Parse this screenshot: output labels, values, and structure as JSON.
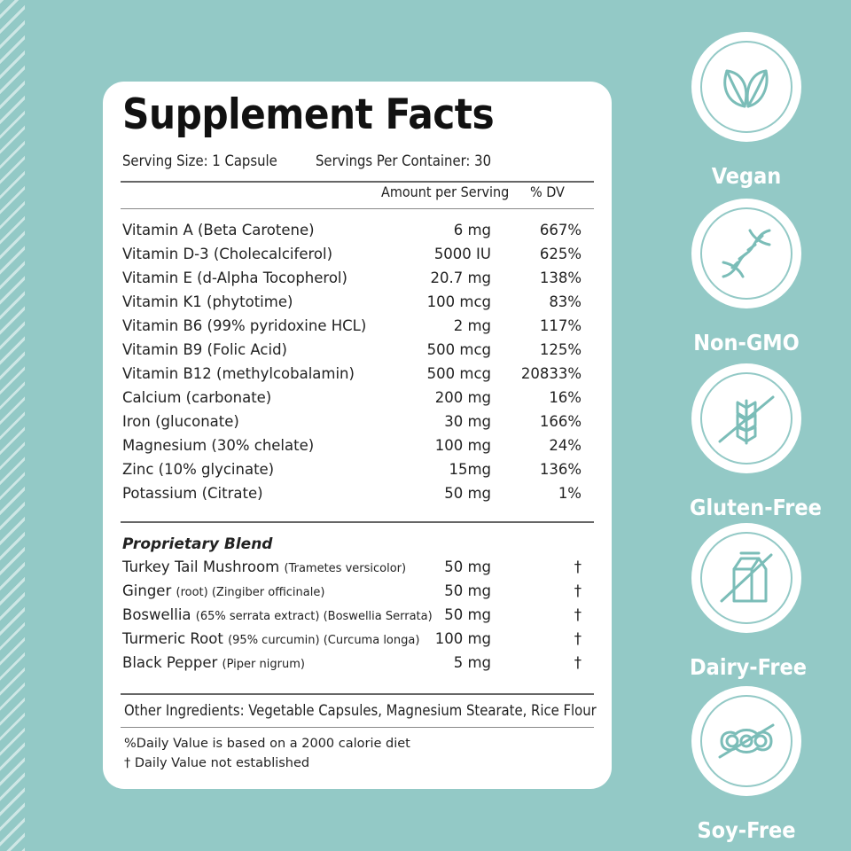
{
  "panel": {
    "title": "Supplement Facts",
    "serving_size": "Serving Size: 1 Capsule",
    "servings_per_container": "Servings Per Container: 30",
    "col_amount": "Amount per Serving",
    "col_dv": "% DV",
    "nutrients": [
      {
        "name": "Vitamin A (Beta Carotene)",
        "amount": "6 mg",
        "dv": "667%"
      },
      {
        "name": "Vitamin D-3 (Cholecalciferol)",
        "amount": "5000 IU",
        "dv": "625%"
      },
      {
        "name": "Vitamin E (d-Alpha Tocopherol)",
        "amount": "20.7 mg",
        "dv": "138%"
      },
      {
        "name": "Vitamin K1 (phytotime)",
        "amount": "100 mcg",
        "dv": "83%"
      },
      {
        "name": "Vitamin B6 (99% pyridoxine HCL)",
        "amount": "2 mg",
        "dv": "117%"
      },
      {
        "name": "Vitamin B9 (Folic Acid)",
        "amount": "500 mcg",
        "dv": "125%"
      },
      {
        "name": "Vitamin B12 (methylcobalamin)",
        "amount": "500 mcg",
        "dv": "20833%"
      },
      {
        "name": "Calcium (carbonate)",
        "amount": "200 mg",
        "dv": "16%"
      },
      {
        "name": "Iron (gluconate)",
        "amount": "30 mg",
        "dv": "166%"
      },
      {
        "name": "Magnesium (30% chelate)",
        "amount": "100 mg",
        "dv": "24%"
      },
      {
        "name": "Zinc (10% glycinate)",
        "amount": "15mg",
        "dv": "136%"
      },
      {
        "name": "Potassium (Citrate)",
        "amount": "50 mg",
        "dv": "1%"
      }
    ],
    "blend_title": "Proprietary Blend",
    "blend": [
      {
        "name": "Turkey Tail Mushroom",
        "note": "(Trametes versicolor)",
        "amount": "50 mg",
        "dv": "†"
      },
      {
        "name": "Ginger",
        "note": "(root)  (Zingiber officinale)",
        "amount": "50 mg",
        "dv": "†"
      },
      {
        "name": "Boswellia",
        "note": "(65% serrata extract)  (Boswellia Serrata)",
        "amount": "50 mg",
        "dv": "†"
      },
      {
        "name": "Turmeric Root",
        "note": "(95% curcumin) (Curcuma longa)",
        "amount": "100 mg",
        "dv": "†"
      },
      {
        "name": "Black Pepper",
        "note": "(Piper nigrum)",
        "amount": "5 mg",
        "dv": "†"
      }
    ],
    "other_ingredients": "Other Ingredients:  Vegetable Capsules, Magnesium Stearate, Rice Flour",
    "footnote_1": "%Daily Value is based on a 2000 calorie diet",
    "footnote_2": "† Daily Value not established"
  },
  "badges": [
    {
      "label": "Vegan",
      "icon": "leaf-icon"
    },
    {
      "label": "Non-GMO",
      "icon": "dna-icon"
    },
    {
      "label": "Gluten-Free",
      "icon": "wheat-crossed-icon"
    },
    {
      "label": "Dairy-Free",
      "icon": "milk-carton-crossed-icon"
    },
    {
      "label": "Soy-Free",
      "icon": "soybean-crossed-icon"
    }
  ],
  "colors": {
    "background": "#93c9c6",
    "panel": "#ffffff",
    "text": "#222222"
  }
}
